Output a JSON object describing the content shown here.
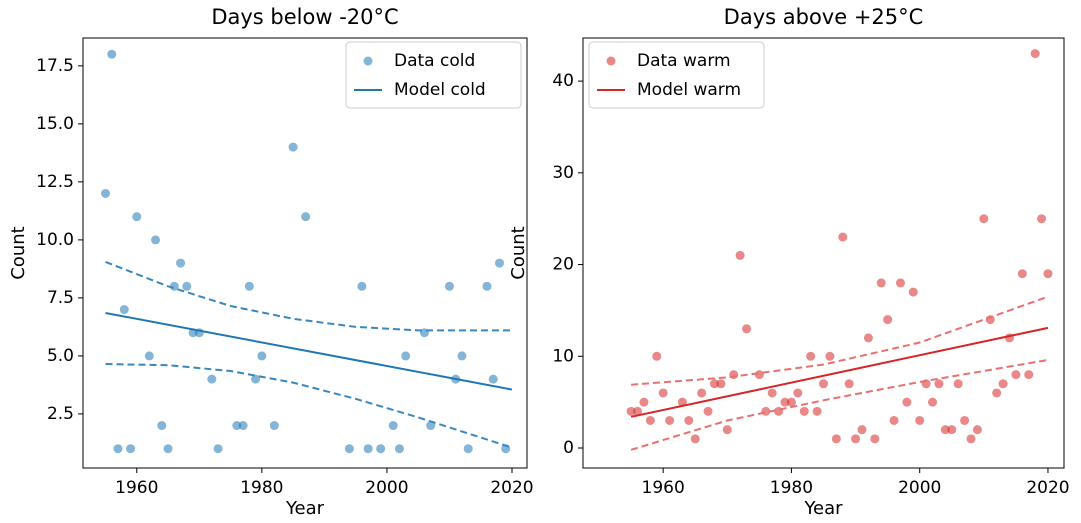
{
  "chart_data": [
    {
      "type": "scatter",
      "title": "Days below -20°C",
      "xlabel": "Year",
      "ylabel": "Count",
      "xlim": [
        1951.4,
        2022.4
      ],
      "ylim": [
        0.17,
        18.7
      ],
      "xticks": [
        1960,
        1980,
        2000,
        2020
      ],
      "yticks": [
        2.5,
        {
          "value": 5,
          "label": "5.0"
        },
        7.5,
        {
          "value": 10,
          "label": "10.0"
        },
        12.5,
        {
          "value": 15,
          "label": "15.0"
        },
        17.5
      ],
      "legend": "upper right",
      "series": [
        {
          "name": "Data cold",
          "type": "scatter",
          "color": "#1f77b4",
          "x": [
            1955,
            1956,
            1957,
            1958,
            1959,
            1960,
            1962,
            1963,
            1964,
            1965,
            1966,
            1967,
            1968,
            1969,
            1970,
            1972,
            1973,
            1976,
            1977,
            1978,
            1979,
            1980,
            1982,
            1985,
            1987,
            1994,
            1996,
            1997,
            1999,
            2001,
            2002,
            2003,
            2006,
            2007,
            2010,
            2011,
            2012,
            2013,
            2016,
            2017,
            2018,
            2019
          ],
          "values": [
            12,
            18,
            1,
            7,
            1,
            11,
            5,
            10,
            2,
            1,
            8,
            9,
            8,
            6,
            6,
            4,
            1,
            2,
            2,
            8,
            4,
            5,
            2,
            14,
            11,
            1,
            8,
            1,
            1,
            2,
            1,
            5,
            6,
            2,
            8,
            4,
            5,
            1,
            8,
            4,
            9,
            1
          ]
        },
        {
          "name": "Model cold",
          "type": "line",
          "color": "#1f77b4",
          "x": [
            1955,
            2020
          ],
          "values": [
            6.85,
            3.55
          ]
        },
        {
          "type": "line",
          "style": "dashed",
          "color": "#3a87bd",
          "x": [
            1955,
            1965,
            1975,
            1985,
            1995,
            2005,
            2020
          ],
          "values": [
            9.05,
            8.0,
            7.15,
            6.6,
            6.25,
            6.1,
            6.1
          ]
        },
        {
          "type": "line",
          "style": "dashed",
          "color": "#3a87bd",
          "x": [
            1955,
            1965,
            1975,
            1985,
            1995,
            2005,
            2020
          ],
          "values": [
            4.65,
            4.6,
            4.35,
            3.85,
            3.15,
            2.35,
            1.05
          ]
        }
      ]
    },
    {
      "type": "scatter",
      "title": "Days above +25°C",
      "xlabel": "Year",
      "ylabel": "Count",
      "xlim": [
        1947.5,
        2022.5
      ],
      "ylim": [
        -2.18,
        44.7
      ],
      "xticks": [
        1960,
        1980,
        2000,
        2020
      ],
      "yticks": [
        0,
        10,
        20,
        30,
        40
      ],
      "legend": "upper left",
      "series": [
        {
          "name": "Data warm",
          "type": "scatter",
          "color": "#d62728",
          "x": [
            1955,
            1956,
            1957,
            1958,
            1959,
            1960,
            1961,
            1963,
            1964,
            1965,
            1966,
            1967,
            1968,
            1969,
            1970,
            1971,
            1972,
            1973,
            1975,
            1976,
            1977,
            1978,
            1979,
            1980,
            1981,
            1982,
            1983,
            1984,
            1985,
            1986,
            1987,
            1988,
            1989,
            1990,
            1991,
            1992,
            1993,
            1994,
            1995,
            1996,
            1997,
            1998,
            1999,
            2000,
            2001,
            2002,
            2003,
            2004,
            2005,
            2006,
            2007,
            2008,
            2009,
            2010,
            2011,
            2012,
            2013,
            2014,
            2015,
            2016,
            2017,
            2018,
            2019,
            2020
          ],
          "values": [
            4,
            4,
            5,
            3,
            10,
            6,
            3,
            5,
            3,
            1,
            6,
            4,
            7,
            7,
            2,
            8,
            21,
            13,
            8,
            4,
            6,
            4,
            5,
            5,
            6,
            4,
            10,
            4,
            7,
            10,
            1,
            23,
            7,
            1,
            2,
            12,
            1,
            18,
            14,
            3,
            18,
            5,
            17,
            3,
            7,
            5,
            7,
            2,
            2,
            7,
            3,
            1,
            2,
            25,
            14,
            6,
            7,
            12,
            8,
            19,
            8,
            43,
            25,
            19
          ]
        },
        {
          "name": "Model warm",
          "type": "line",
          "color": "#d62728",
          "x": [
            1955,
            2020
          ],
          "values": [
            3.4,
            13.1
          ]
        },
        {
          "type": "line",
          "style": "dashed",
          "color": "#e8706f",
          "x": [
            1955,
            1970,
            1985,
            2000,
            2020
          ],
          "values": [
            6.9,
            7.7,
            9.1,
            11.5,
            16.5
          ]
        },
        {
          "type": "line",
          "style": "dashed",
          "color": "#e8706f",
          "x": [
            1955,
            1970,
            1985,
            2000,
            2020
          ],
          "values": [
            -0.2,
            3.0,
            5.2,
            7.2,
            9.6
          ]
        }
      ]
    }
  ]
}
